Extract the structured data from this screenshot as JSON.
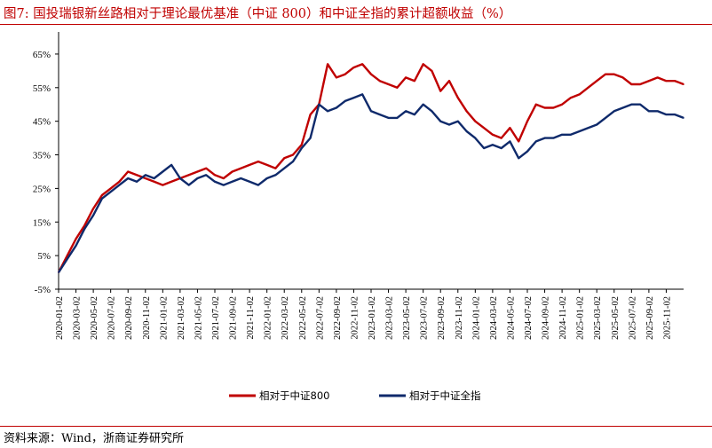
{
  "header": {
    "title": "图7:   国投瑞银新丝路相对于理论最优基准（中证 800）和中证全指的累计超额收益（%）"
  },
  "footer": {
    "source": "资料来源：Wind，浙商证券研究所"
  },
  "colors": {
    "series1": "#C00000",
    "series2": "#0F2A6B",
    "rule": "#C00000",
    "axis": "#000000"
  },
  "chart_data": {
    "type": "line",
    "title": "国投瑞银新丝路相对于理论最优基准（中证 800）和中证全指的累计超额收益（%）",
    "xlabel": "",
    "ylabel": "",
    "ylim": [
      -5,
      70
    ],
    "yticks": [
      -5,
      5,
      15,
      25,
      35,
      45,
      55,
      65
    ],
    "ytick_labels": [
      "-5%",
      "5%",
      "15%",
      "25%",
      "35%",
      "45%",
      "55%",
      "65%"
    ],
    "x_tick_labels": [
      "2020-01-02",
      "2020-03-02",
      "2020-05-02",
      "2020-07-02",
      "2020-09-02",
      "2020-11-02",
      "2021-01-02",
      "2021-03-02",
      "2021-05-02",
      "2021-07-02",
      "2021-09-02",
      "2021-11-02",
      "2022-01-02",
      "2022-03-02",
      "2022-05-02",
      "2022-07-02",
      "2022-09-02",
      "2022-11-02",
      "2023-01-02",
      "2023-03-02",
      "2023-05-02",
      "2023-07-02",
      "2023-09-02",
      "2023-11-02",
      "2024-01-02",
      "2024-03-02",
      "2024-05-02",
      "2024-07-02",
      "2024-09-02",
      "2024-11-02",
      "2025-01-02",
      "2025-03-02",
      "2025-05-02",
      "2025-07-02",
      "2025-09-02",
      "2025-11-02"
    ],
    "x_months": [
      0,
      1,
      2,
      3,
      4,
      5,
      6,
      7,
      8,
      9,
      10,
      11,
      12,
      13,
      14,
      15,
      16,
      17,
      18,
      19,
      20,
      21,
      22,
      23,
      24,
      25,
      26,
      27,
      28,
      29,
      30,
      31,
      32,
      33,
      34,
      35,
      36,
      37,
      38,
      39,
      40,
      41,
      42,
      43,
      44,
      45,
      46,
      47,
      48,
      49,
      50,
      51,
      52,
      53,
      54,
      55,
      56,
      57,
      58,
      59,
      60,
      61,
      62,
      63,
      64,
      65,
      66,
      67,
      68,
      69,
      70,
      71,
      72
    ],
    "series": [
      {
        "name": "相对于中证800",
        "color": "#C00000",
        "values": [
          0,
          5,
          10,
          14,
          19,
          23,
          25,
          27,
          30,
          29,
          28,
          27,
          26,
          27,
          28,
          29,
          30,
          31,
          29,
          28,
          30,
          31,
          32,
          33,
          32,
          31,
          34,
          35,
          38,
          47,
          50,
          62,
          58,
          59,
          61,
          62,
          59,
          57,
          56,
          55,
          58,
          57,
          62,
          60,
          54,
          57,
          52,
          48,
          45,
          43,
          41,
          40,
          43,
          39,
          45,
          50,
          49,
          49,
          50,
          52,
          53,
          55,
          57,
          59,
          59,
          58,
          56,
          56,
          57,
          58,
          57,
          57,
          56
        ]
      },
      {
        "name": "相对于中证全指",
        "color": "#0F2A6B",
        "values": [
          0,
          4,
          8,
          13,
          17,
          22,
          24,
          26,
          28,
          27,
          29,
          28,
          30,
          32,
          28,
          26,
          28,
          29,
          27,
          26,
          27,
          28,
          27,
          26,
          28,
          29,
          31,
          33,
          37,
          40,
          50,
          48,
          49,
          51,
          52,
          53,
          48,
          47,
          46,
          46,
          48,
          47,
          50,
          48,
          45,
          44,
          45,
          42,
          40,
          37,
          38,
          37,
          39,
          34,
          36,
          39,
          40,
          40,
          41,
          41,
          42,
          43,
          44,
          46,
          48,
          49,
          50,
          50,
          48,
          48,
          47,
          47,
          46
        ]
      }
    ],
    "legend": {
      "position": "bottom-center",
      "entries": [
        "相对于中证800",
        "相对于中证全指"
      ]
    }
  }
}
